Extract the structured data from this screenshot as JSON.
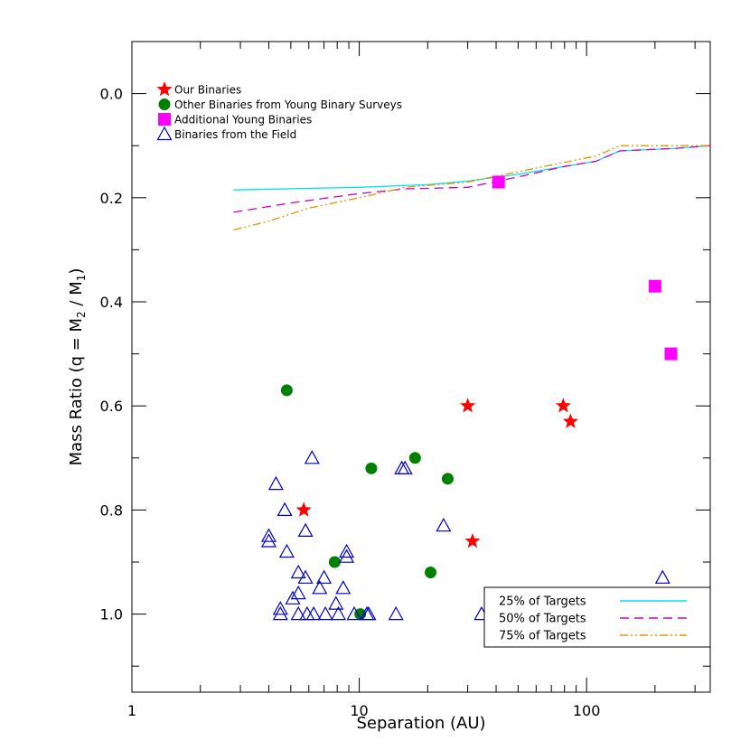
{
  "chart_data": {
    "type": "scatter",
    "title": "",
    "xlabel": "Separation (AU)",
    "ylabel": "Mass Ratio (q = M₂ / M₁)",
    "x_scale": "log",
    "xlim": [
      1,
      350
    ],
    "ylim": [
      1.15,
      -0.1
    ],
    "y_inverted": true,
    "grid": false,
    "x_ticks": [
      1,
      10,
      100
    ],
    "x_tick_labels": [
      "1",
      "10",
      "100"
    ],
    "y_ticks": [
      0.0,
      0.2,
      0.4,
      0.6,
      0.8,
      1.0
    ],
    "y_tick_labels": [
      "0.0",
      "0.2",
      "0.4",
      "0.6",
      "0.8",
      "1.0"
    ],
    "legend_top_left": [
      {
        "label": "Our Binaries",
        "marker": "star",
        "color": "#ff0000"
      },
      {
        "label": "Other Binaries from Young Binary Surveys",
        "marker": "circle",
        "color": "#008000"
      },
      {
        "label": "Additional Young Binaries",
        "marker": "square",
        "color": "#ff00ff"
      },
      {
        "label": "Binaries from the Field",
        "marker": "triangle-open",
        "color": "#0000cc"
      }
    ],
    "legend_bottom_right": [
      {
        "label": "25% of Targets",
        "style": "solid",
        "color": "#00e5e5"
      },
      {
        "label": "50% of Targets",
        "style": "dashed",
        "color": "#cc00cc"
      },
      {
        "label": "75% of Targets",
        "style": "dash-dot-dot",
        "color": "#e69500"
      }
    ],
    "series": [
      {
        "name": "Our Binaries",
        "marker": "star",
        "color": "#ff0000",
        "points": [
          [
            5.7,
            0.8
          ],
          [
            30,
            0.6
          ],
          [
            31.5,
            0.86
          ],
          [
            79,
            0.6
          ],
          [
            85,
            0.63
          ]
        ]
      },
      {
        "name": "Other Binaries from Young Binary Surveys",
        "marker": "circle",
        "color": "#008000",
        "points": [
          [
            4.8,
            0.57
          ],
          [
            7.8,
            0.9
          ],
          [
            10.1,
            1.0
          ],
          [
            11.3,
            0.72
          ],
          [
            17.6,
            0.7
          ],
          [
            20.6,
            0.92
          ],
          [
            24.5,
            0.74
          ]
        ]
      },
      {
        "name": "Additional Young Binaries",
        "marker": "square",
        "color": "#ff00ff",
        "points": [
          [
            41,
            0.17
          ],
          [
            200,
            0.37
          ],
          [
            235,
            0.5
          ]
        ]
      },
      {
        "name": "Binaries from the Field",
        "marker": "triangle-open",
        "color": "#0000cc",
        "points": [
          [
            4.0,
            0.85
          ],
          [
            4.0,
            0.86
          ],
          [
            4.3,
            0.75
          ],
          [
            4.5,
            0.99
          ],
          [
            4.5,
            1.0
          ],
          [
            4.7,
            0.8
          ],
          [
            4.8,
            0.88
          ],
          [
            5.1,
            0.97
          ],
          [
            5.4,
            0.92
          ],
          [
            5.4,
            0.96
          ],
          [
            5.4,
            1.0
          ],
          [
            5.8,
            0.93
          ],
          [
            5.8,
            0.84
          ],
          [
            5.9,
            1.0
          ],
          [
            6.2,
            0.7
          ],
          [
            6.3,
            1.0
          ],
          [
            6.7,
            0.95
          ],
          [
            7.0,
            0.93
          ],
          [
            7.1,
            1.0
          ],
          [
            7.9,
            0.98
          ],
          [
            8.1,
            1.0
          ],
          [
            8.5,
            0.95
          ],
          [
            8.8,
            0.88
          ],
          [
            8.8,
            0.89
          ],
          [
            9.5,
            1.0
          ],
          [
            10.8,
            1.0
          ],
          [
            11.0,
            1.0
          ],
          [
            14.5,
            1.0
          ],
          [
            15.4,
            0.72
          ],
          [
            15.9,
            0.72
          ],
          [
            23.5,
            0.83
          ],
          [
            34.5,
            1.0
          ],
          [
            38.2,
            0.98
          ],
          [
            216,
            0.93
          ]
        ]
      },
      {
        "name": "25% of Targets",
        "marker": "none",
        "line": "solid",
        "color": "#00e5e5",
        "points": [
          [
            2.8,
            0.185
          ],
          [
            10,
            0.18
          ],
          [
            20,
            0.175
          ],
          [
            30,
            0.168
          ],
          [
            50,
            0.155
          ],
          [
            80,
            0.14
          ],
          [
            110,
            0.13
          ],
          [
            140,
            0.11
          ],
          [
            250,
            0.105
          ],
          [
            350,
            0.1
          ]
        ]
      },
      {
        "name": "50% of Targets",
        "marker": "none",
        "line": "dashed",
        "color": "#cc00cc",
        "points": [
          [
            2.8,
            0.228
          ],
          [
            5,
            0.21
          ],
          [
            10,
            0.192
          ],
          [
            16,
            0.183
          ],
          [
            30,
            0.18
          ],
          [
            50,
            0.16
          ],
          [
            80,
            0.14
          ],
          [
            110,
            0.13
          ],
          [
            140,
            0.11
          ],
          [
            250,
            0.105
          ],
          [
            350,
            0.1
          ]
        ]
      },
      {
        "name": "75% of Targets",
        "marker": "none",
        "line": "dash-dot-dot",
        "color": "#e69500",
        "points": [
          [
            2.8,
            0.262
          ],
          [
            4,
            0.245
          ],
          [
            6,
            0.22
          ],
          [
            10,
            0.2
          ],
          [
            16,
            0.18
          ],
          [
            30,
            0.17
          ],
          [
            50,
            0.15
          ],
          [
            80,
            0.132
          ],
          [
            110,
            0.12
          ],
          [
            140,
            0.1
          ],
          [
            250,
            0.1
          ],
          [
            350,
            0.1
          ]
        ]
      }
    ]
  }
}
